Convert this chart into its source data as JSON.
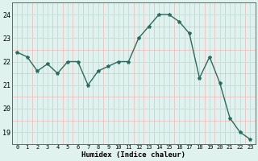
{
  "x": [
    0,
    1,
    2,
    3,
    4,
    5,
    6,
    7,
    8,
    9,
    10,
    11,
    12,
    13,
    14,
    15,
    16,
    17,
    18,
    19,
    20,
    21,
    22,
    23
  ],
  "y": [
    22.4,
    22.2,
    21.6,
    21.9,
    21.5,
    22.0,
    22.0,
    21.0,
    21.6,
    21.8,
    22.0,
    22.0,
    23.0,
    23.5,
    24.0,
    24.0,
    23.7,
    23.2,
    21.3,
    22.2,
    21.1,
    19.6,
    19.0,
    18.7
  ],
  "xlabel": "Humidex (Indice chaleur)",
  "ylim": [
    18.5,
    24.5
  ],
  "xlim": [
    -0.5,
    23.5
  ],
  "yticks": [
    19,
    20,
    21,
    22,
    23,
    24
  ],
  "xticks": [
    0,
    1,
    2,
    3,
    4,
    5,
    6,
    7,
    8,
    9,
    10,
    11,
    12,
    13,
    14,
    15,
    16,
    17,
    18,
    19,
    20,
    21,
    22,
    23
  ],
  "line_color": "#2d6b5e",
  "marker_color": "#2d6b5e",
  "bg_color": "#dff2ee",
  "major_grid_color": "#c8e0db",
  "minor_grid_color": "#f0b8b8",
  "axes_bg": "#dff2ee"
}
